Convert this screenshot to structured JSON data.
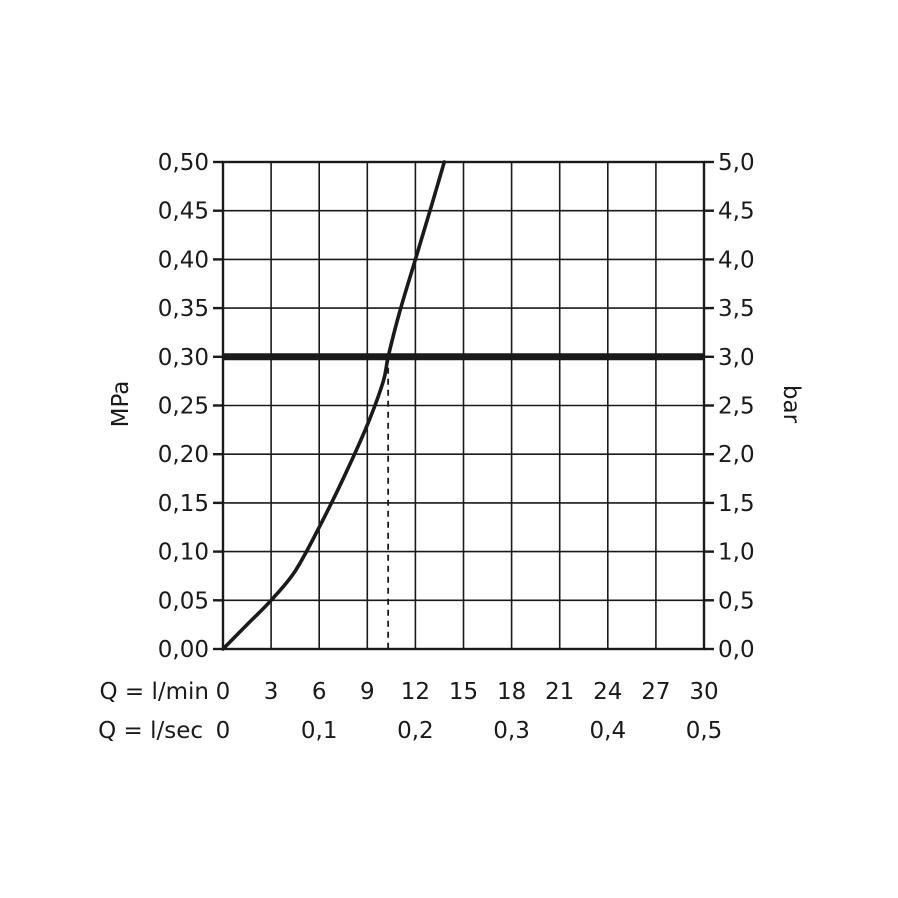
{
  "chart_data": {
    "type": "line",
    "title": "",
    "ylabel_left": "MPa",
    "ylabel_right": "bar",
    "x_rows": [
      {
        "label": "Q = l/min",
        "ticks": [
          "0",
          "3",
          "6",
          "9",
          "12",
          "15",
          "18",
          "21",
          "24",
          "27",
          "30"
        ],
        "values": [
          0,
          3,
          6,
          9,
          12,
          15,
          18,
          21,
          24,
          27,
          30
        ]
      },
      {
        "label": "Q = l/sec",
        "ticks": [
          "0",
          "0,1",
          "0,2",
          "0,3",
          "0,4",
          "0,5"
        ],
        "values": [
          0,
          6,
          12,
          18,
          24,
          30
        ]
      }
    ],
    "xlim": [
      0,
      30
    ],
    "y_left_ticks": [
      "0,00",
      "0,05",
      "0,10",
      "0,15",
      "0,20",
      "0,25",
      "0,30",
      "0,35",
      "0,40",
      "0,45",
      "0,50"
    ],
    "y_right_ticks": [
      "0,0",
      "0,5",
      "1,0",
      "1,5",
      "2,0",
      "2,5",
      "3,0",
      "3,5",
      "4,0",
      "4,5",
      "5,0"
    ],
    "ylim": [
      0,
      0.5
    ],
    "grid": true,
    "series": [
      {
        "x": [
          0,
          1.5,
          3,
          4.5,
          6,
          7.5,
          9,
          10,
          10.3,
          11,
          12,
          13,
          13.8
        ],
        "y": [
          0,
          0.025,
          0.05,
          0.08,
          0.125,
          0.175,
          0.23,
          0.275,
          0.3,
          0.345,
          0.4,
          0.455,
          0.5
        ]
      }
    ],
    "reference_line": {
      "y": 0.3
    },
    "marker_line": {
      "x": 10.3,
      "y": 0.3
    }
  }
}
